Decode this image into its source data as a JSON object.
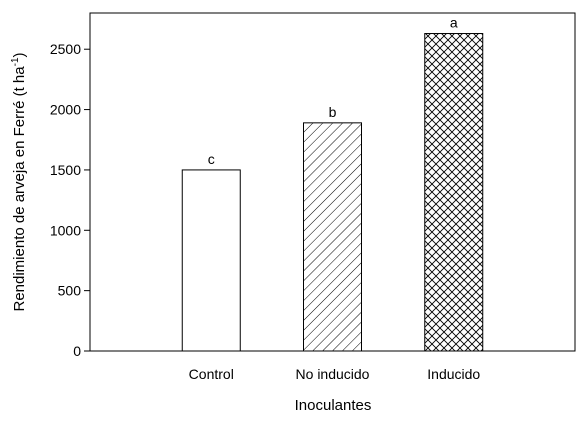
{
  "chart_data": {
    "type": "bar",
    "categories": [
      "Control",
      "No inducido",
      "Inducido"
    ],
    "values": [
      1500,
      1890,
      2630
    ],
    "significance_letters": [
      "c",
      "b",
      "a"
    ],
    "bar_patterns": [
      "none",
      "diagonal-hatch",
      "cross-hatch"
    ],
    "xlabel": "Inoculantes",
    "ylabel": "Rendimiento de arveja en Ferré (t ha",
    "ylabel_superscript": "-1",
    "ylabel_close": ")",
    "ylim": [
      0,
      2800
    ],
    "yticks": [
      0,
      500,
      1000,
      1500,
      2000,
      2500
    ],
    "grid": false,
    "legend": "none"
  }
}
